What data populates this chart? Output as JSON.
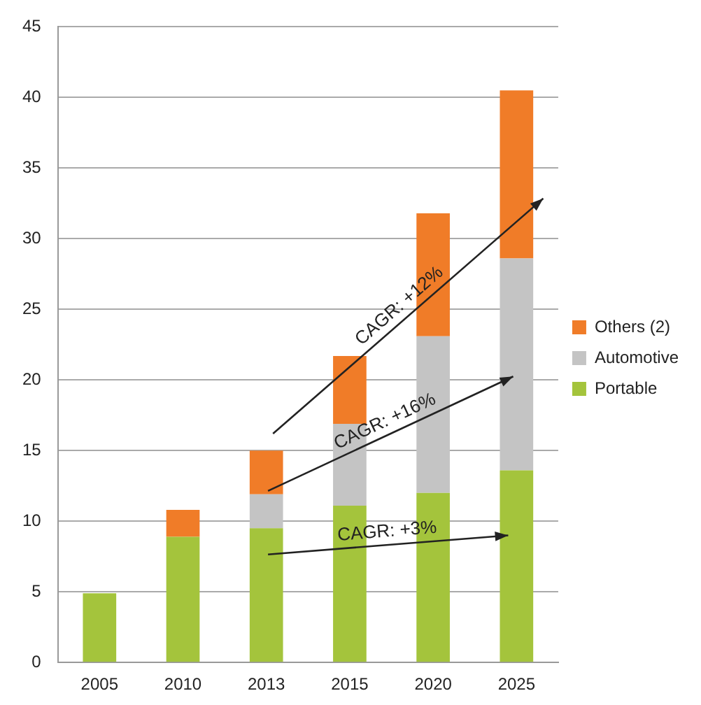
{
  "chart_data": {
    "type": "bar",
    "stacked": true,
    "categories": [
      "2005",
      "2010",
      "2013",
      "2015",
      "2020",
      "2025"
    ],
    "series": [
      {
        "name": "Portable",
        "color": "#a4c43c",
        "values": [
          4.9,
          8.9,
          9.5,
          11.1,
          12.0,
          13.6
        ]
      },
      {
        "name": "Automotive",
        "color": "#c4c4c4",
        "values": [
          0,
          0,
          2.4,
          5.8,
          11.1,
          15.0
        ]
      },
      {
        "name": "Others (2)",
        "color": "#f07c28",
        "values": [
          0,
          1.9,
          3.1,
          4.8,
          8.7,
          11.9
        ]
      }
    ],
    "ylim": [
      0,
      45
    ],
    "yticks": [
      0,
      5,
      10,
      15,
      20,
      25,
      30,
      35,
      40,
      45
    ],
    "grid": "y",
    "legend": "right",
    "annotations": [
      "CAGR: +12%",
      "CAGR: +16%",
      "CAGR: +3%"
    ]
  }
}
